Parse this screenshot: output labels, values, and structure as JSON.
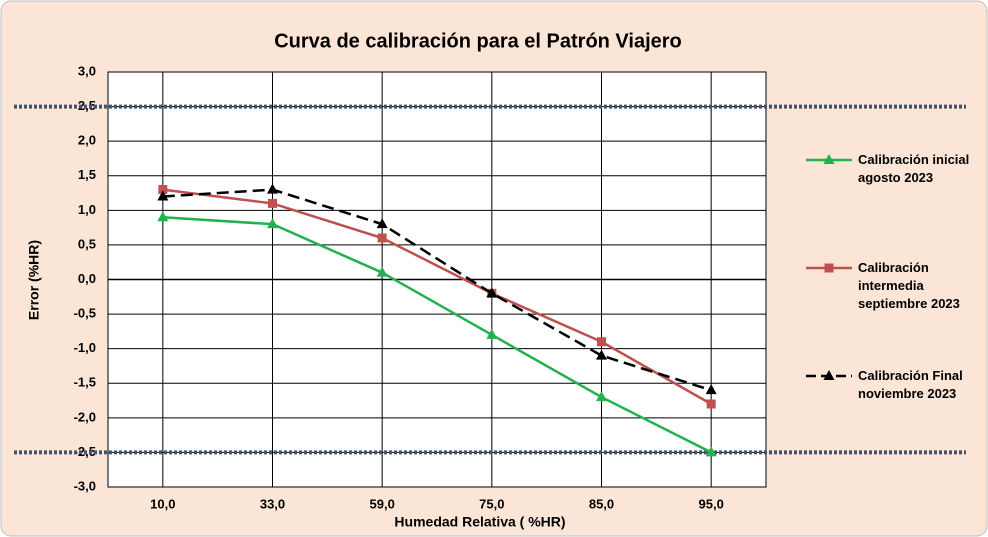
{
  "chart_data": {
    "type": "line",
    "title": "Curva de calibración para el Patrón Viajero",
    "x_label": "Humedad Relativa ( %HR)",
    "y_label": "Error (%HR)",
    "categories": [
      "10,0",
      "33,0",
      "59,0",
      "75,0",
      "85,0",
      "95,0"
    ],
    "series": [
      {
        "name": "Calibración inicial agosto 2023",
        "color": "#22b14c",
        "marker": "triangle",
        "dash": false,
        "values": [
          0.9,
          0.8,
          0.1,
          -0.8,
          -1.7,
          -2.5
        ]
      },
      {
        "name": "Calibración intermedia septiembre 2023",
        "color": "#c0504d",
        "marker": "square",
        "dash": false,
        "values": [
          1.3,
          1.1,
          0.6,
          -0.2,
          -0.9,
          -1.8
        ]
      },
      {
        "name": "Calibración Final noviembre 2023",
        "color": "#000000",
        "marker": "triangle",
        "dash": true,
        "values": [
          1.2,
          1.3,
          0.8,
          -0.2,
          -1.1,
          -1.6
        ]
      }
    ],
    "reference_lines": [
      2.5,
      -2.5
    ],
    "ylim": [
      -3,
      3
    ],
    "yticks": [
      {
        "value": 3,
        "label": "3,0"
      },
      {
        "value": 2.5,
        "label": "2,5"
      },
      {
        "value": 2,
        "label": "2,0"
      },
      {
        "value": 1.5,
        "label": "1,5"
      },
      {
        "value": 1,
        "label": "1,0"
      },
      {
        "value": 0.5,
        "label": "0,5"
      },
      {
        "value": 0,
        "label": "0,0"
      },
      {
        "value": -0.5,
        "label": "-0,5"
      },
      {
        "value": -1,
        "label": "-1,0"
      },
      {
        "value": -1.5,
        "label": "-1,5"
      },
      {
        "value": -2,
        "label": "-2,0"
      },
      {
        "value": -2.5,
        "label": "-2,5"
      },
      {
        "value": -3,
        "label": "-3,0"
      }
    ],
    "grid": true,
    "legend": "right"
  }
}
